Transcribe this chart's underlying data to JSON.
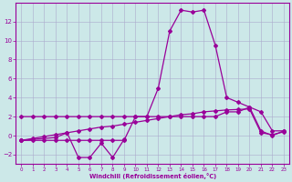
{
  "x": [
    0,
    1,
    2,
    3,
    4,
    5,
    6,
    7,
    8,
    9,
    10,
    11,
    12,
    13,
    14,
    15,
    16,
    17,
    18,
    19,
    20,
    21,
    22,
    23
  ],
  "y_peak": [
    -0.5,
    -0.5,
    -0.5,
    -0.5,
    -0.5,
    -0.5,
    -0.5,
    -0.5,
    -0.5,
    -0.5,
    2.0,
    2.0,
    5.0,
    11.0,
    13.2,
    13.0,
    13.2,
    9.5,
    4.0,
    3.5,
    3.0,
    0.5,
    0.0,
    0.5
  ],
  "y_flat": [
    2.0,
    2.0,
    2.0,
    2.0,
    2.0,
    2.0,
    2.0,
    2.0,
    2.0,
    2.0,
    2.0,
    2.0,
    2.0,
    2.0,
    2.0,
    2.0,
    2.0,
    2.0,
    2.5,
    2.5,
    3.0,
    2.5,
    0.5,
    0.5
  ],
  "y_incr": [
    -0.5,
    -0.3,
    -0.1,
    0.1,
    0.3,
    0.5,
    0.7,
    0.9,
    1.0,
    1.2,
    1.4,
    1.6,
    1.8,
    2.0,
    2.2,
    2.3,
    2.5,
    2.6,
    2.7,
    2.75,
    2.8,
    0.3,
    0.1,
    0.4
  ],
  "y_wavy": [
    -0.5,
    null,
    null,
    -0.2,
    0.3,
    -2.3,
    -2.3,
    -0.8,
    -2.3,
    -0.4,
    null,
    null,
    null,
    null,
    null,
    null,
    null,
    null,
    null,
    null,
    null,
    null,
    null,
    null
  ],
  "bg_color": "#cce8e8",
  "line_color": "#990099",
  "grid_color": "#aaaacc",
  "xlabel": "Windchill (Refroidissement éolien,°C)",
  "ylim": [
    -3.0,
    14.0
  ],
  "xlim": [
    -0.5,
    23.5
  ],
  "yticks": [
    -2,
    0,
    2,
    4,
    6,
    8,
    10,
    12
  ]
}
